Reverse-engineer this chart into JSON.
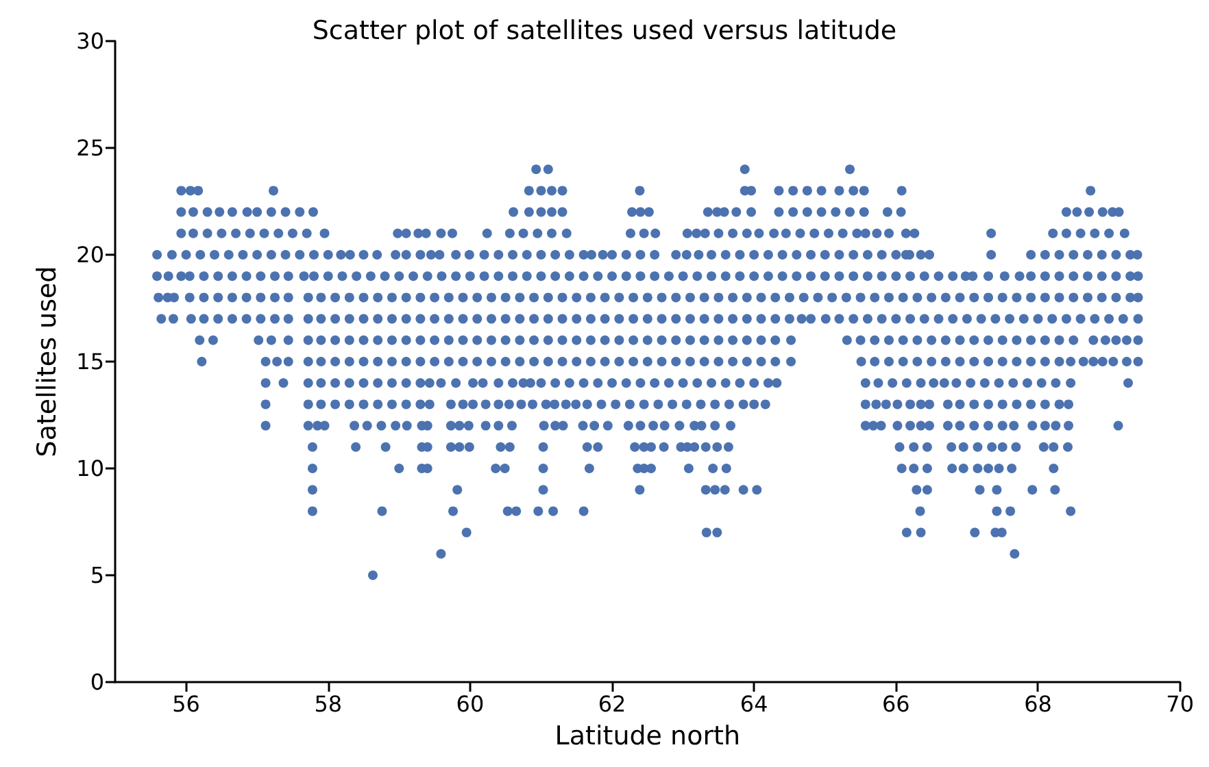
{
  "chart_data": {
    "type": "scatter",
    "title": "Scatter plot of satellites used versus latitude",
    "xlabel": "Latitude north",
    "ylabel": "Satellites used",
    "xlim": [
      55,
      70
    ],
    "xticks": [
      56,
      58,
      60,
      62,
      64,
      66,
      68,
      70
    ],
    "ylim": [
      0,
      30
    ],
    "yticks": [
      0,
      5,
      10,
      15,
      20,
      25,
      30
    ],
    "marker": "circle",
    "series": [
      {
        "color": "#4c72b0",
        "x": [
          60.93,
          61.1,
          63.87,
          65.35
        ],
        "values": [
          24,
          24,
          24,
          24
        ]
      },
      {
        "color": "#4c72b0",
        "x": [
          55.93,
          56.06,
          56.17,
          57.23,
          60.83,
          61.0,
          61.15,
          61.3,
          62.39,
          63.87,
          63.96,
          64.35,
          64.55,
          64.75,
          64.95,
          65.2,
          65.4,
          65.55,
          66.08,
          68.74
        ],
        "values": [
          23,
          23,
          23,
          23,
          23,
          23,
          23,
          23,
          23,
          23,
          23,
          23,
          23,
          23,
          23,
          23,
          23,
          23,
          23,
          23
        ]
      },
      {
        "color": "#4c72b0",
        "x": [
          55.93,
          56.1,
          56.3,
          56.47,
          56.65,
          56.86,
          57.0,
          57.2,
          57.4,
          57.6,
          57.79,
          60.61,
          60.83,
          61.0,
          61.15,
          61.3,
          62.28,
          62.4,
          62.52,
          63.35,
          63.48,
          63.58,
          63.75,
          63.96,
          64.35,
          64.55,
          64.75,
          64.95,
          65.15,
          65.35,
          65.55,
          65.88,
          66.07,
          68.4,
          68.55,
          68.72,
          68.91,
          69.05,
          69.14
        ],
        "values": [
          22,
          22,
          22,
          22,
          22,
          22,
          22,
          22,
          22,
          22,
          22,
          22,
          22,
          22,
          22,
          22,
          22,
          22,
          22,
          22,
          22,
          22,
          22,
          22,
          22,
          22,
          22,
          22,
          22,
          22,
          22,
          22,
          22,
          22,
          22,
          22,
          22,
          22,
          22
        ]
      },
      {
        "color": "#4c72b0",
        "x": [
          55.93,
          56.1,
          56.3,
          56.5,
          56.7,
          56.9,
          57.1,
          57.3,
          57.5,
          57.7,
          57.95,
          58.98,
          59.1,
          59.27,
          59.38,
          59.59,
          59.75,
          60.24,
          60.56,
          60.75,
          60.95,
          61.15,
          61.36,
          62.26,
          62.45,
          62.61,
          63.06,
          63.19,
          63.31,
          63.5,
          63.7,
          63.9,
          64.07,
          64.28,
          64.45,
          64.65,
          64.85,
          65.05,
          65.25,
          65.45,
          65.57,
          65.73,
          65.9,
          66.14,
          66.26,
          67.34,
          68.21,
          68.4,
          68.6,
          68.8,
          69.0,
          69.22
        ],
        "values": [
          21,
          21,
          21,
          21,
          21,
          21,
          21,
          21,
          21,
          21,
          21,
          21,
          21,
          21,
          21,
          21,
          21,
          21,
          21,
          21,
          21,
          21,
          21,
          21,
          21,
          21,
          21,
          21,
          21,
          21,
          21,
          21,
          21,
          21,
          21,
          21,
          21,
          21,
          21,
          21,
          21,
          21,
          21,
          21,
          21,
          21,
          21,
          21,
          21,
          21,
          21,
          21
        ]
      },
      {
        "color": "#4c72b0",
        "x": [
          55.59,
          55.8,
          56.0,
          56.2,
          56.4,
          56.6,
          56.8,
          57.0,
          57.2,
          57.4,
          57.6,
          57.8,
          58.0,
          58.18,
          58.31,
          58.5,
          58.69,
          58.95,
          59.1,
          59.3,
          59.45,
          59.57,
          59.8,
          59.99,
          60.2,
          60.4,
          60.6,
          60.8,
          61.0,
          61.2,
          61.4,
          61.6,
          61.71,
          61.87,
          62.0,
          62.2,
          62.4,
          62.6,
          62.9,
          63.05,
          63.22,
          63.4,
          63.6,
          63.8,
          64.0,
          64.2,
          64.4,
          64.6,
          64.8,
          65.0,
          65.2,
          65.4,
          65.6,
          65.8,
          66.0,
          66.14,
          66.19,
          66.35,
          66.47,
          67.34,
          67.9,
          68.1,
          68.3,
          68.5,
          68.7,
          68.9,
          69.1,
          69.3,
          69.4
        ],
        "values": [
          20,
          20,
          20,
          20,
          20,
          20,
          20,
          20,
          20,
          20,
          20,
          20,
          20,
          20,
          20,
          20,
          20,
          20,
          20,
          20,
          20,
          20,
          20,
          20,
          20,
          20,
          20,
          20,
          20,
          20,
          20,
          20,
          20,
          20,
          20,
          20,
          20,
          20,
          20,
          20,
          20,
          20,
          20,
          20,
          20,
          20,
          20,
          20,
          20,
          20,
          20,
          20,
          20,
          20,
          20,
          20,
          20,
          20,
          20,
          20,
          20,
          20,
          20,
          20,
          20,
          20,
          20,
          20,
          20
        ]
      },
      {
        "color": "#4c72b0",
        "x": [
          55.59,
          55.75,
          55.93,
          56.05,
          56.25,
          56.45,
          56.65,
          56.85,
          57.05,
          57.25,
          57.44,
          57.66,
          57.8,
          58.0,
          58.2,
          58.4,
          58.6,
          58.8,
          59.0,
          59.2,
          59.4,
          59.6,
          59.8,
          60.0,
          60.2,
          60.4,
          60.6,
          60.8,
          61.0,
          61.2,
          61.4,
          61.6,
          61.8,
          62.0,
          62.2,
          62.4,
          62.6,
          62.8,
          63.0,
          63.2,
          63.4,
          63.6,
          63.8,
          64.0,
          64.2,
          64.4,
          64.6,
          64.8,
          65.0,
          65.2,
          65.4,
          65.6,
          65.8,
          66.0,
          66.2,
          66.4,
          66.6,
          66.8,
          66.98,
          67.08,
          67.3,
          67.53,
          67.74,
          67.9,
          68.1,
          68.3,
          68.5,
          68.7,
          68.9,
          69.1,
          69.3,
          69.41
        ],
        "values": [
          19,
          19,
          19,
          19,
          19,
          19,
          19,
          19,
          19,
          19,
          19,
          19,
          19,
          19,
          19,
          19,
          19,
          19,
          19,
          19,
          19,
          19,
          19,
          19,
          19,
          19,
          19,
          19,
          19,
          19,
          19,
          19,
          19,
          19,
          19,
          19,
          19,
          19,
          19,
          19,
          19,
          19,
          19,
          19,
          19,
          19,
          19,
          19,
          19,
          19,
          19,
          19,
          19,
          19,
          19,
          19,
          19,
          19,
          19,
          19,
          19,
          19,
          19,
          19,
          19,
          19,
          19,
          19,
          19,
          19,
          19,
          19
        ]
      },
      {
        "color": "#4c72b0",
        "x": [
          55.61,
          55.74,
          55.83,
          56.05,
          56.25,
          56.45,
          56.65,
          56.85,
          57.05,
          57.25,
          57.44,
          57.72,
          57.9,
          58.1,
          58.3,
          58.5,
          58.7,
          58.9,
          59.1,
          59.3,
          59.5,
          59.7,
          59.9,
          60.1,
          60.3,
          60.5,
          60.7,
          60.9,
          61.1,
          61.3,
          61.5,
          61.7,
          61.9,
          62.1,
          62.3,
          62.5,
          62.7,
          62.9,
          63.1,
          63.3,
          63.5,
          63.7,
          63.9,
          64.1,
          64.3,
          64.5,
          64.7,
          64.9,
          65.1,
          65.3,
          65.5,
          65.7,
          65.9,
          66.1,
          66.3,
          66.5,
          66.7,
          66.9,
          67.1,
          67.3,
          67.5,
          67.7,
          67.9,
          68.1,
          68.3,
          68.5,
          68.7,
          68.9,
          69.1,
          69.3,
          69.41
        ],
        "values": [
          18,
          18,
          18,
          18,
          18,
          18,
          18,
          18,
          18,
          18,
          18,
          18,
          18,
          18,
          18,
          18,
          18,
          18,
          18,
          18,
          18,
          18,
          18,
          18,
          18,
          18,
          18,
          18,
          18,
          18,
          18,
          18,
          18,
          18,
          18,
          18,
          18,
          18,
          18,
          18,
          18,
          18,
          18,
          18,
          18,
          18,
          18,
          18,
          18,
          18,
          18,
          18,
          18,
          18,
          18,
          18,
          18,
          18,
          18,
          18,
          18,
          18,
          18,
          18,
          18,
          18,
          18,
          18,
          18,
          18,
          18
        ]
      },
      {
        "color": "#4c72b0",
        "x": [
          55.65,
          55.82,
          56.07,
          56.25,
          56.45,
          56.65,
          56.85,
          57.05,
          57.25,
          57.44,
          57.72,
          57.9,
          58.1,
          58.3,
          58.5,
          58.7,
          58.9,
          59.1,
          59.3,
          59.5,
          59.7,
          59.9,
          60.1,
          60.3,
          60.5,
          60.7,
          60.9,
          61.1,
          61.3,
          61.5,
          61.7,
          61.9,
          62.1,
          62.3,
          62.5,
          62.7,
          62.9,
          63.1,
          63.3,
          63.5,
          63.7,
          63.9,
          64.1,
          64.3,
          64.5,
          64.67,
          64.8,
          65.01,
          65.2,
          65.4,
          65.6,
          65.8,
          66.0,
          66.2,
          66.4,
          66.6,
          66.8,
          67.0,
          67.2,
          67.4,
          67.6,
          67.8,
          68.0,
          68.2,
          68.4,
          68.6,
          68.8,
          69.0,
          69.2,
          69.41
        ],
        "values": [
          17,
          17,
          17,
          17,
          17,
          17,
          17,
          17,
          17,
          17,
          17,
          17,
          17,
          17,
          17,
          17,
          17,
          17,
          17,
          17,
          17,
          17,
          17,
          17,
          17,
          17,
          17,
          17,
          17,
          17,
          17,
          17,
          17,
          17,
          17,
          17,
          17,
          17,
          17,
          17,
          17,
          17,
          17,
          17,
          17,
          17,
          17,
          17,
          17,
          17,
          17,
          17,
          17,
          17,
          17,
          17,
          17,
          17,
          17,
          17,
          17,
          17,
          17,
          17,
          17,
          17,
          17,
          17,
          17,
          17
        ]
      },
      {
        "color": "#4c72b0",
        "x": [
          56.19,
          56.38,
          57.02,
          57.2,
          57.44,
          57.72,
          57.9,
          58.1,
          58.3,
          58.5,
          58.7,
          58.9,
          59.1,
          59.3,
          59.5,
          59.7,
          59.9,
          60.1,
          60.3,
          60.5,
          60.7,
          60.9,
          61.1,
          61.3,
          61.5,
          61.7,
          61.9,
          62.1,
          62.3,
          62.5,
          62.7,
          62.9,
          63.1,
          63.3,
          63.5,
          63.7,
          63.9,
          64.1,
          64.3,
          64.52,
          65.31,
          65.5,
          65.7,
          65.9,
          66.1,
          66.3,
          66.5,
          66.7,
          66.9,
          67.1,
          67.3,
          67.5,
          67.7,
          67.9,
          68.1,
          68.3,
          68.5,
          68.78,
          68.95,
          69.1,
          69.25,
          69.41
        ],
        "values": [
          16,
          16,
          16,
          16,
          16,
          16,
          16,
          16,
          16,
          16,
          16,
          16,
          16,
          16,
          16,
          16,
          16,
          16,
          16,
          16,
          16,
          16,
          16,
          16,
          16,
          16,
          16,
          16,
          16,
          16,
          16,
          16,
          16,
          16,
          16,
          16,
          16,
          16,
          16,
          16,
          16,
          16,
          16,
          16,
          16,
          16,
          16,
          16,
          16,
          16,
          16,
          16,
          16,
          16,
          16,
          16,
          16,
          16,
          16,
          16,
          16,
          16
        ]
      },
      {
        "color": "#4c72b0",
        "x": [
          56.22,
          57.12,
          57.28,
          57.44,
          57.72,
          57.9,
          58.1,
          58.3,
          58.5,
          58.7,
          58.9,
          59.1,
          59.3,
          59.5,
          59.7,
          59.9,
          60.1,
          60.3,
          60.5,
          60.7,
          60.9,
          61.1,
          61.3,
          61.5,
          61.7,
          61.9,
          62.1,
          62.3,
          62.5,
          62.7,
          62.9,
          63.1,
          63.3,
          63.5,
          63.7,
          63.9,
          64.1,
          64.3,
          64.52,
          65.51,
          65.7,
          65.9,
          66.1,
          66.3,
          66.5,
          66.7,
          66.9,
          67.1,
          67.3,
          67.5,
          67.7,
          67.9,
          68.1,
          68.3,
          68.46,
          68.64,
          68.78,
          68.91,
          69.06,
          69.25,
          69.41
        ],
        "values": [
          15,
          15,
          15,
          15,
          15,
          15,
          15,
          15,
          15,
          15,
          15,
          15,
          15,
          15,
          15,
          15,
          15,
          15,
          15,
          15,
          15,
          15,
          15,
          15,
          15,
          15,
          15,
          15,
          15,
          15,
          15,
          15,
          15,
          15,
          15,
          15,
          15,
          15,
          15,
          15,
          15,
          15,
          15,
          15,
          15,
          15,
          15,
          15,
          15,
          15,
          15,
          15,
          15,
          15,
          15,
          15,
          15,
          15,
          15,
          15,
          15
        ]
      },
      {
        "color": "#4c72b0",
        "x": [
          57.12,
          57.37,
          57.72,
          57.9,
          58.1,
          58.3,
          58.5,
          58.7,
          58.9,
          59.1,
          59.3,
          59.43,
          59.59,
          59.8,
          60.04,
          60.18,
          60.4,
          60.6,
          60.75,
          60.85,
          61.0,
          61.2,
          61.4,
          61.6,
          61.8,
          62.0,
          62.2,
          62.4,
          62.6,
          62.8,
          63.0,
          63.2,
          63.4,
          63.6,
          63.8,
          64.0,
          64.2,
          64.32,
          65.57,
          65.75,
          65.95,
          66.15,
          66.35,
          66.53,
          66.68,
          66.85,
          67.05,
          67.25,
          67.45,
          67.65,
          67.85,
          68.05,
          68.25,
          68.46,
          69.27
        ],
        "values": [
          14,
          14,
          14,
          14,
          14,
          14,
          14,
          14,
          14,
          14,
          14,
          14,
          14,
          14,
          14,
          14,
          14,
          14,
          14,
          14,
          14,
          14,
          14,
          14,
          14,
          14,
          14,
          14,
          14,
          14,
          14,
          14,
          14,
          14,
          14,
          14,
          14,
          14,
          14,
          14,
          14,
          14,
          14,
          14,
          14,
          14,
          14,
          14,
          14,
          14,
          14,
          14,
          14,
          14,
          14
        ]
      },
      {
        "color": "#4c72b0",
        "x": [
          57.12,
          57.72,
          57.9,
          58.1,
          58.3,
          58.5,
          58.7,
          58.9,
          59.1,
          59.3,
          59.43,
          59.73,
          59.9,
          60.04,
          60.22,
          60.4,
          60.55,
          60.72,
          60.88,
          61.07,
          61.19,
          61.35,
          61.49,
          61.65,
          61.85,
          62.05,
          62.25,
          62.45,
          62.65,
          62.85,
          63.05,
          63.25,
          63.45,
          63.65,
          63.85,
          64.0,
          64.16,
          65.57,
          65.72,
          65.86,
          66.02,
          66.2,
          66.35,
          66.47,
          66.73,
          66.9,
          67.1,
          67.3,
          67.5,
          67.7,
          67.9,
          68.1,
          68.3,
          68.43
        ],
        "values": [
          13,
          13,
          13,
          13,
          13,
          13,
          13,
          13,
          13,
          13,
          13,
          13,
          13,
          13,
          13,
          13,
          13,
          13,
          13,
          13,
          13,
          13,
          13,
          13,
          13,
          13,
          13,
          13,
          13,
          13,
          13,
          13,
          13,
          13,
          13,
          13,
          13,
          13,
          13,
          13,
          13,
          13,
          13,
          13,
          13,
          13,
          13,
          13,
          13,
          13,
          13,
          13,
          13,
          13
        ]
      },
      {
        "color": "#4c72b0",
        "x": [
          57.12,
          57.72,
          57.85,
          57.95,
          58.37,
          58.55,
          58.75,
          58.95,
          59.11,
          59.32,
          59.4,
          59.73,
          59.85,
          59.98,
          60.22,
          60.4,
          60.59,
          61.04,
          61.2,
          61.31,
          61.59,
          61.75,
          61.94,
          62.23,
          62.4,
          62.58,
          62.74,
          62.95,
          63.16,
          63.26,
          63.45,
          63.67,
          65.57,
          65.68,
          65.79,
          66.02,
          66.2,
          66.35,
          66.47,
          66.73,
          66.9,
          67.1,
          67.3,
          67.5,
          67.66,
          67.92,
          68.1,
          68.25,
          68.43,
          69.13
        ],
        "values": [
          12,
          12,
          12,
          12,
          12,
          12,
          12,
          12,
          12,
          12,
          12,
          12,
          12,
          12,
          12,
          12,
          12,
          12,
          12,
          12,
          12,
          12,
          12,
          12,
          12,
          12,
          12,
          12,
          12,
          12,
          12,
          12,
          12,
          12,
          12,
          12,
          12,
          12,
          12,
          12,
          12,
          12,
          12,
          12,
          12,
          12,
          12,
          12,
          12,
          12
        ]
      },
      {
        "color": "#4c72b0",
        "x": [
          57.78,
          58.39,
          58.81,
          59.32,
          59.4,
          59.73,
          59.85,
          59.99,
          60.43,
          60.56,
          61.03,
          61.65,
          61.8,
          62.32,
          62.45,
          62.55,
          62.73,
          62.97,
          63.06,
          63.16,
          63.32,
          63.48,
          63.64,
          66.05,
          66.25,
          66.44,
          66.78,
          66.95,
          67.15,
          67.35,
          67.5,
          67.69,
          68.08,
          68.22,
          68.42
        ],
        "values": [
          11,
          11,
          11,
          11,
          11,
          11,
          11,
          11,
          11,
          11,
          11,
          11,
          11,
          11,
          11,
          11,
          11,
          11,
          11,
          11,
          11,
          11,
          11,
          11,
          11,
          11,
          11,
          11,
          11,
          11,
          11,
          11,
          11,
          11,
          11
        ]
      },
      {
        "color": "#4c72b0",
        "x": [
          57.78,
          59.0,
          59.32,
          59.4,
          60.36,
          60.49,
          61.03,
          61.68,
          62.36,
          62.45,
          62.55,
          63.08,
          63.42,
          63.61,
          66.08,
          66.25,
          66.44,
          66.79,
          66.95,
          67.15,
          67.3,
          67.45,
          67.63,
          68.22
        ],
        "values": [
          10,
          10,
          10,
          10,
          10,
          10,
          10,
          10,
          10,
          10,
          10,
          10,
          10,
          10,
          10,
          10,
          10,
          10,
          10,
          10,
          10,
          10,
          10,
          10
        ]
      },
      {
        "color": "#4c72b0",
        "x": [
          57.78,
          59.82,
          61.03,
          62.39,
          63.32,
          63.45,
          63.59,
          63.85,
          64.04,
          66.29,
          66.44,
          67.18,
          67.42,
          67.92,
          68.24
        ],
        "values": [
          9,
          9,
          9,
          9,
          9,
          9,
          9,
          9,
          9,
          9,
          9,
          9,
          9,
          9,
          9
        ]
      },
      {
        "color": "#4c72b0",
        "x": [
          57.78,
          58.76,
          59.76,
          60.53,
          60.65,
          60.96,
          61.17,
          61.6,
          66.34,
          67.42,
          67.61,
          68.46
        ],
        "values": [
          8,
          8,
          8,
          8,
          8,
          8,
          8,
          8,
          8,
          8,
          8,
          8
        ]
      },
      {
        "color": "#4c72b0",
        "x": [
          59.95,
          63.33,
          63.48,
          66.15,
          66.35,
          67.11,
          67.4,
          67.49
        ],
        "values": [
          7,
          7,
          7,
          7,
          7,
          7,
          7,
          7
        ]
      },
      {
        "color": "#4c72b0",
        "x": [
          59.59,
          67.67
        ],
        "values": [
          6,
          6
        ]
      },
      {
        "color": "#4c72b0",
        "x": [
          58.63
        ],
        "values": [
          5
        ]
      }
    ]
  }
}
